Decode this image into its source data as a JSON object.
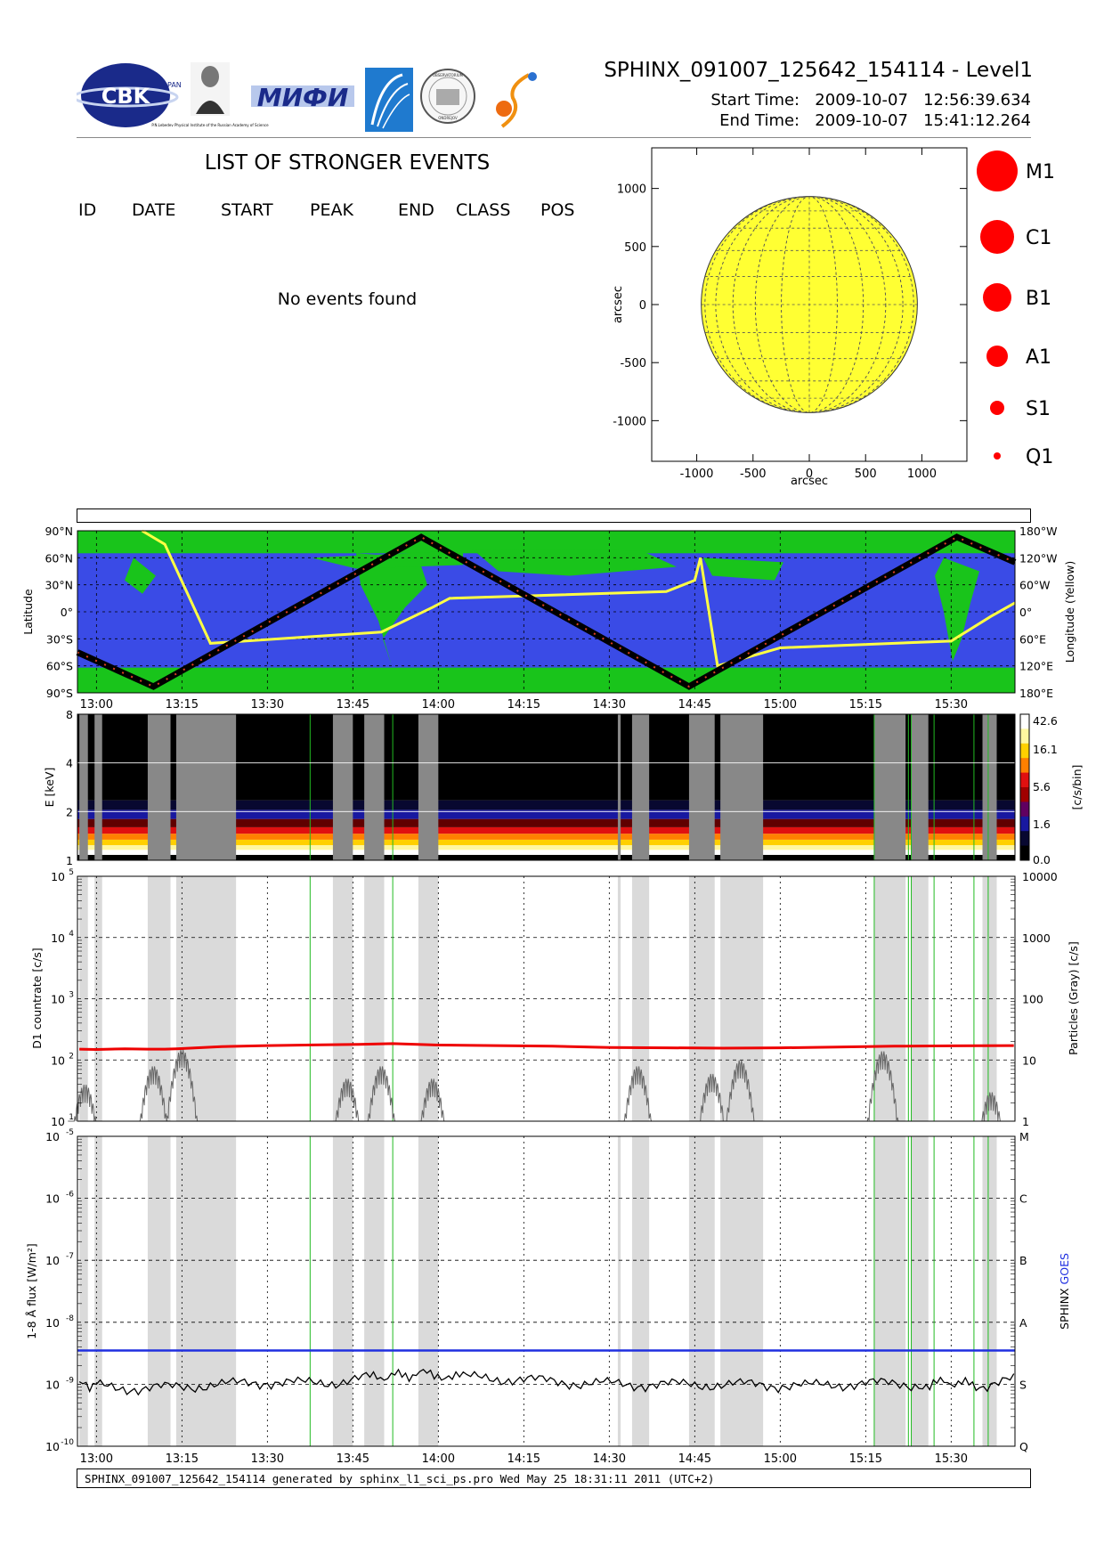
{
  "header": {
    "title": "SPHINX_091007_125642_154114 - Level1",
    "start_label": "Start Time:",
    "start_value": "2009-10-07   12:56:39.634",
    "end_label": "End Time:",
    "end_value": "2009-10-07   15:41:12.264",
    "logos": {
      "cbk": "CBK",
      "cbk_sub": "PAN",
      "lebedev_caption": "P.N.Lebedev Physical Institute of the Russian Academy of Science",
      "mifi": "МИФИ",
      "seal": "OBSERVATORIUM",
      "seal_sub": "ONDREJOV"
    },
    "icons": [
      "cbk-logo-icon",
      "lebedev-portrait-icon",
      "mifi-logo-icon",
      "comet-logo-icon",
      "seal-logo-icon",
      "swirl-logo-icon"
    ]
  },
  "events": {
    "title": "LIST OF STRONGER EVENTS",
    "columns": [
      "ID",
      "DATE",
      "START",
      "PEAK",
      "END",
      "CLASS",
      "POS"
    ],
    "empty_message": "No events found"
  },
  "legend": {
    "classes": [
      "M1",
      "C1",
      "B1",
      "A1",
      "S1",
      "Q1"
    ],
    "marker_color": "#ff0000"
  },
  "footer": {
    "text": "SPHINX_091007_125642_154114 generated by sphinx_l1_sci_ps.pro Wed May 25 18:31:11 2011 (UTC+2)"
  },
  "colors": {
    "sun": "#ffff33",
    "ocean": "#3a4be6",
    "land": "#19c41b",
    "orbit": "#000000",
    "longitude": "#ffff44",
    "goes": "#1f2fe0",
    "d1": "#ee0000",
    "gap": "#dadada",
    "gap_dark": "#888888",
    "event_line": "#22bb22"
  },
  "chart_data": [
    {
      "type": "scatter",
      "name": "solar-disk",
      "xlabel": "arcsec",
      "ylabel": "arcsec",
      "xlim": [
        -1400,
        1400
      ],
      "ylim": [
        -1350,
        1350
      ],
      "xticks": [
        "-1000",
        "-500",
        "0",
        "500",
        "1000"
      ],
      "yticks": [
        "1000",
        "500",
        "0",
        "-500",
        "-1000"
      ],
      "xtick_values": [
        -1000,
        -500,
        0,
        500,
        1000
      ],
      "ytick_values": [
        1000,
        500,
        0,
        -500,
        -1000
      ],
      "sun_radius_arcsec": 960,
      "grid": true,
      "events": []
    },
    {
      "type": "line",
      "name": "orbit-map",
      "ylabel": "Latitude",
      "y2label": "Longitude (Yellow)",
      "ylim": [
        -90,
        90
      ],
      "yticks": [
        "90°N",
        "60°N",
        "30°N",
        "0°",
        "30°S",
        "60°S",
        "90°S"
      ],
      "ytick_values": [
        90,
        60,
        30,
        0,
        -30,
        -60,
        -90
      ],
      "y2ticks": [
        "180°W",
        "120°W",
        "60°W",
        "0°",
        "60°E",
        "120°E",
        "180°E"
      ],
      "time_range": [
        "12:56:40",
        "15:41:12"
      ],
      "xticks": [
        "13:00",
        "13:15",
        "13:30",
        "13:45",
        "14:00",
        "14:15",
        "14:30",
        "14:45",
        "15:00",
        "15:15",
        "15:30"
      ],
      "latitude_track": {
        "x": [
          "12:56:40",
          "13:10:00",
          "13:57:00",
          "14:44:00",
          "15:31:00",
          "15:41:12"
        ],
        "y": [
          -45,
          -83,
          83,
          -83,
          83,
          55
        ]
      },
      "longitude_track": {
        "x": [
          "13:08:00",
          "13:12:00",
          "13:20:00",
          "13:50:00",
          "13:59:00",
          "14:02:00",
          "14:40:00",
          "14:45:00",
          "14:46:00",
          "14:49:00",
          "15:00:00",
          "15:30:00",
          "15:37:00",
          "15:41:12"
        ],
        "y": [
          -180,
          -150,
          70,
          45,
          -10,
          -30,
          -45,
          -70,
          -120,
          120,
          80,
          65,
          10,
          -20
        ]
      }
    },
    {
      "type": "heatmap",
      "name": "spectrogram",
      "ylabel": "E [keV]",
      "colorbar_label": "[c/s/bin]",
      "ylim": [
        1,
        8
      ],
      "yscale": "log",
      "yticks": [
        "8",
        "4",
        "2",
        "1"
      ],
      "ytick_values": [
        8,
        4,
        2,
        1
      ],
      "colorbar_ticks": [
        "42.6",
        "16.1",
        "5.6",
        "1.6",
        "0.0"
      ],
      "bands": [
        {
          "from": 1.0,
          "to": 1.08,
          "color": "#000000"
        },
        {
          "from": 1.08,
          "to": 1.16,
          "color": "#ffffff"
        },
        {
          "from": 1.16,
          "to": 1.24,
          "color": "#fff7a0"
        },
        {
          "from": 1.24,
          "to": 1.34,
          "color": "#ffd000"
        },
        {
          "from": 1.34,
          "to": 1.46,
          "color": "#ff8000"
        },
        {
          "from": 1.46,
          "to": 1.6,
          "color": "#e01010"
        },
        {
          "from": 1.6,
          "to": 1.8,
          "color": "#600000"
        },
        {
          "from": 1.8,
          "to": 2.05,
          "color": "#1818a0"
        },
        {
          "from": 2.05,
          "to": 2.35,
          "color": "#080830"
        },
        {
          "from": 2.35,
          "to": 8.0,
          "color": "#000000"
        }
      ]
    },
    {
      "type": "line",
      "name": "countrate",
      "ylabel": "D1 countrate [c/s]",
      "y2label": "Particles (Gray) [c/s]",
      "yscale": "log",
      "ylim": [
        10,
        100000
      ],
      "ytick_values": [
        100000,
        10000,
        1000,
        100,
        10
      ],
      "yticks_base": [
        "10",
        "10",
        "10",
        "10",
        "10"
      ],
      "yticks_exp": [
        "5",
        "4",
        "3",
        "2",
        "1"
      ],
      "y2ticks": [
        "10000",
        "1000",
        "100",
        "10",
        "1"
      ],
      "series": [
        {
          "name": "D1",
          "color": "#ee0000",
          "x": [
            "12:57:00",
            "13:00:00",
            "13:05:00",
            "13:09:00",
            "13:12:00",
            "13:14:00",
            "13:22:00",
            "13:30:00",
            "13:38:00",
            "13:46:00",
            "13:52:00",
            "14:00:00",
            "14:10:00",
            "14:20:00",
            "14:30:00",
            "14:40:00",
            "14:50:00",
            "15:00:00",
            "15:10:00",
            "15:20:00",
            "15:30:00",
            "15:41:00"
          ],
          "y": [
            150,
            148,
            152,
            150,
            150,
            152,
            165,
            172,
            176,
            180,
            185,
            175,
            172,
            168,
            160,
            158,
            156,
            158,
            162,
            168,
            170,
            172
          ]
        }
      ],
      "particle_peaks": [
        {
          "t": "12:58:00",
          "v": 4
        },
        {
          "t": "13:10:00",
          "v": 8
        },
        {
          "t": "13:15:00",
          "v": 15
        },
        {
          "t": "13:44:00",
          "v": 5
        },
        {
          "t": "13:50:00",
          "v": 8
        },
        {
          "t": "13:59:00",
          "v": 5
        },
        {
          "t": "14:35:00",
          "v": 8
        },
        {
          "t": "14:48:00",
          "v": 6
        },
        {
          "t": "14:53:00",
          "v": 10
        },
        {
          "t": "15:18:00",
          "v": 14
        },
        {
          "t": "15:37:00",
          "v": 3
        }
      ]
    },
    {
      "type": "line",
      "name": "flux",
      "ylabel": "1-8 Å flux [W/m²]",
      "y2label_parts": [
        "SPHINX ",
        "GOES"
      ],
      "yscale": "log",
      "ylim": [
        1e-10,
        1e-05
      ],
      "ytick_values": [
        1e-05,
        1e-06,
        1e-07,
        1e-08,
        1e-09,
        1e-10
      ],
      "yticks_base": [
        "10",
        "10",
        "10",
        "10",
        "10",
        "10"
      ],
      "yticks_exp": [
        "-5",
        "-6",
        "-7",
        "-8",
        "-9",
        "-10"
      ],
      "y2ticks": [
        "M",
        "C",
        "B",
        "A",
        "S",
        "Q"
      ],
      "series": [
        {
          "name": "SPHINX",
          "color": "#000000",
          "x": [
            "12:57:00",
            "13:00:00",
            "13:04:00",
            "13:08:00",
            "13:22:00",
            "13:30:00",
            "13:36:00",
            "13:42:00",
            "13:48:00",
            "13:53:00",
            "13:58:00",
            "14:05:00",
            "14:15:00",
            "14:25:00",
            "14:35:00",
            "14:45:00",
            "14:55:00",
            "15:05:00",
            "15:15:00",
            "15:25:00",
            "15:30:00",
            "15:35:00",
            "15:41:00"
          ],
          "y": [
            1e-09,
            9.5e-10,
            9e-10,
            8.5e-10,
            1e-09,
            1.1e-09,
            1.05e-09,
            1.1e-09,
            1.3e-09,
            1.4e-09,
            1.5e-09,
            1.3e-09,
            1.2e-09,
            1.05e-09,
            1e-09,
            1e-09,
            1e-09,
            9.5e-10,
            1.05e-09,
            1e-09,
            1.1e-09,
            9.5e-10,
            1.2e-09
          ]
        },
        {
          "name": "GOES",
          "color": "#1f2fe0",
          "x": [
            "12:56:40",
            "15:41:12"
          ],
          "y": [
            3.5e-09,
            3.5e-09
          ]
        }
      ]
    }
  ],
  "timeline": {
    "xlim": [
      "12:56:40",
      "15:41:12"
    ],
    "xticks": [
      "13:00",
      "13:15",
      "13:30",
      "13:45",
      "14:00",
      "14:15",
      "14:30",
      "14:45",
      "15:00",
      "15:15",
      "15:30"
    ],
    "gaps": [
      [
        "12:57:00",
        "12:58:30"
      ],
      [
        "12:59:40",
        "13:01:00"
      ],
      [
        "13:09:00",
        "13:13:00"
      ],
      [
        "13:14:00",
        "13:24:30"
      ],
      [
        "13:41:30",
        "13:45:00"
      ],
      [
        "13:47:00",
        "13:50:30"
      ],
      [
        "13:56:30",
        "14:00:00"
      ],
      [
        "14:31:30",
        "14:32:00"
      ],
      [
        "14:34:00",
        "14:37:00"
      ],
      [
        "14:44:00",
        "14:48:30"
      ],
      [
        "14:49:30",
        "14:57:00"
      ],
      [
        "15:16:30",
        "15:22:00"
      ],
      [
        "15:23:00",
        "15:26:00"
      ],
      [
        "15:35:30",
        "15:38:00"
      ]
    ],
    "event_lines": [
      "13:37:30",
      "13:52:00",
      "15:16:30",
      "15:22:30",
      "15:23:00",
      "15:27:00",
      "15:34:00",
      "15:36:30"
    ]
  }
}
